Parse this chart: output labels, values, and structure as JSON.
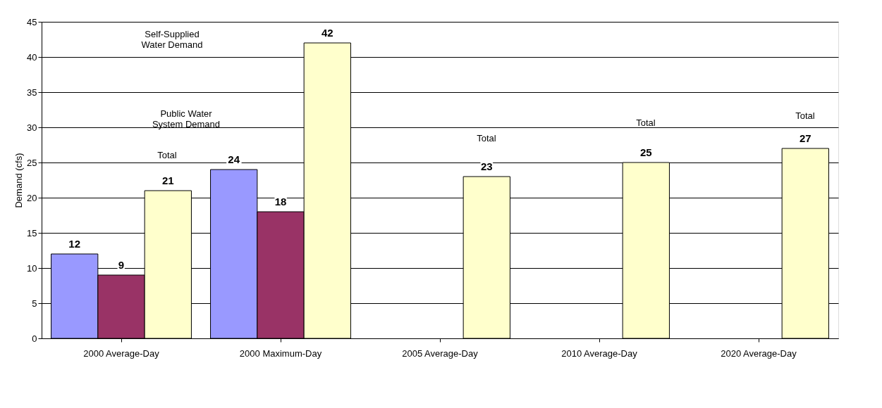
{
  "chart_data": {
    "type": "bar",
    "ylabel": "Demand (cfs)",
    "categories": [
      "2000 Average-Day",
      "2000 Maximum-Day",
      "2005 Average-Day",
      "2010 Average-Day",
      "2020 Average-Day"
    ],
    "series": [
      {
        "color": "#9999ff",
        "values": [
          12,
          24,
          null,
          null,
          null
        ]
      },
      {
        "color": "#993366",
        "values": [
          9,
          18,
          null,
          null,
          null
        ]
      },
      {
        "color": "#ffffcc",
        "values": [
          21,
          42,
          23,
          25,
          27
        ]
      }
    ],
    "ylim": [
      0,
      45
    ],
    "yticks": [
      0,
      5,
      10,
      15,
      20,
      25,
      30,
      35,
      40,
      45
    ],
    "grid": "y",
    "data_labels": true,
    "annotations": [
      "Self-Supplied\nWater Demand",
      "Public Water\nSystem Demand",
      "Total",
      "Total",
      "Total",
      "Total"
    ]
  }
}
